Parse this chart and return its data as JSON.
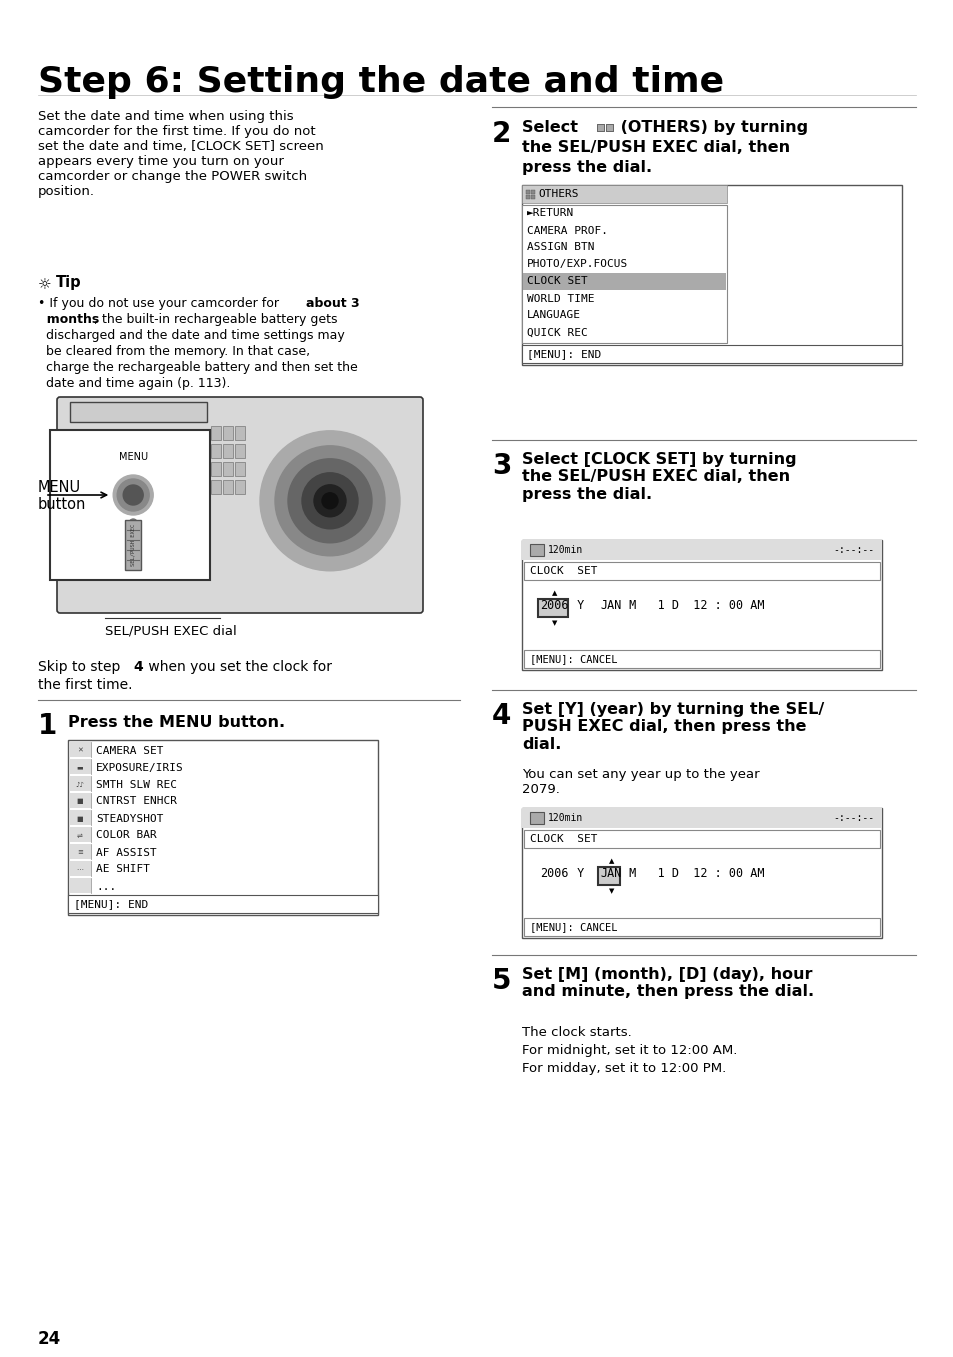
{
  "title": "Step 6: Setting the date and time",
  "bg_color": "#ffffff",
  "page_number": "24",
  "intro_text": "Set the date and time when using this\ncamcorder for the first time. If you do not\nset the date and time, [CLOCK SET] screen\nappears every time you turn on your\ncamcorder or change the POWER switch\nposition.",
  "tip_title": "Tip",
  "skip_text_normal": "Skip to step ",
  "skip_text_bold": "4",
  "skip_text_end": " when you set the clock for\nthe first time.",
  "step1_num": "1",
  "step1_text": "Press the MENU button.",
  "step1_menu_items": [
    "CAMERA SET",
    "EXPOSURE/IRIS",
    "SMTH SLW REC",
    "CNTRST ENHCR",
    "STEADYSHOT",
    "COLOR BAR",
    "AF ASSIST",
    "AE SHIFT",
    "..."
  ],
  "step1_menu_footer": "[MENU]: END",
  "step2_num": "2",
  "step2_menu_title": "OTHERS",
  "step2_menu_items": [
    "►RETURN",
    "CAMERA PROF.",
    "ASSIGN BTN",
    "PHOTO/EXP.FOCUS",
    "CLOCK SET",
    "WORLD TIME",
    "LANGUAGE",
    "QUICK REC"
  ],
  "step2_menu_footer": "[MENU]: END",
  "step2_highlight": "CLOCK SET",
  "step3_num": "3",
  "step3_text": "Select [CLOCK SET] by turning\nthe SEL/PUSH EXEC dial, then\npress the dial.",
  "step3_screen_title": "CLOCK  SET",
  "step4_num": "4",
  "step4_text": "Set [Y] (year) by turning the SEL/\nPUSH EXEC dial, then press the\ndial.",
  "step4_note": "You can set any year up to the year\n2079.",
  "step4_screen_title": "CLOCK  SET",
  "step5_num": "5",
  "step5_text": "Set [M] (month), [D] (day), hour\nand minute, then press the dial.",
  "step5_note1": "The clock starts.",
  "step5_note2": "For midnight, set it to 12:00 AM.",
  "step5_note3": "For midday, set it to 12:00 PM.",
  "menu_button_label": "MENU\nbutton",
  "sel_dial_label": "SEL/PUSH EXEC dial"
}
